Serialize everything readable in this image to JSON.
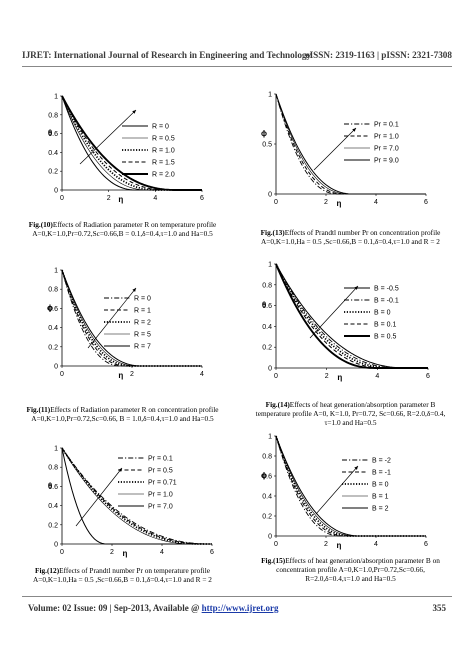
{
  "header": {
    "journal": "IJRET: International Journal of Research in Engineering and Technology",
    "issn": "eISSN: 2319-1163 | pISSN: 2321-7308"
  },
  "footer": {
    "prefix": "Volume: 02 Issue: 09 | Sep-2013, Available @ ",
    "url": "http://www.ijret.org",
    "page": "355"
  },
  "figures": [
    {
      "id": "fig10",
      "caption_label": "Fig.(10)",
      "caption_text": "Effects of Radiation parameter R on temperature profile A=0,K=1.0,Pr=0.72,Sc=0.66,B = 0.1,δ=0.4,τ=1.0 and Ha=0.5",
      "chart_data": {
        "type": "line",
        "xlabel": "η",
        "ylabel": "θ",
        "xlim": [
          0,
          6
        ],
        "ylim": [
          0,
          1
        ],
        "xticks": [
          "0",
          "2",
          "4",
          "6"
        ],
        "yticks": [
          "0",
          "0.2",
          "0.4",
          "0.6",
          "0.8",
          "1"
        ],
        "legend_position": "right",
        "series": [
          {
            "name": "R = 0",
            "style": "solid",
            "decay": 3.2
          },
          {
            "name": "R = 0.5",
            "style": "thin",
            "decay": 3.7
          },
          {
            "name": "R = 1.0",
            "style": "dot",
            "decay": 4.1
          },
          {
            "name": "R = 1.5",
            "style": "dash",
            "decay": 4.5
          },
          {
            "name": "R = 2.0",
            "style": "thick",
            "decay": 4.9
          }
        ]
      }
    },
    {
      "id": "fig13",
      "caption_label": "Fig.(13)",
      "caption_text": "Effects of Prandtl number Pr on concentration profile A=0,K=1.0,Ha = 0.5 ,Sc=0.66,B = 0.1,δ=0.4,τ=1.0 and R = 2",
      "chart_data": {
        "type": "line",
        "xlabel": "η",
        "ylabel": "ϕ",
        "xlim": [
          0,
          6
        ],
        "ylim": [
          0,
          1
        ],
        "xticks": [
          "0",
          "2",
          "4",
          "6"
        ],
        "yticks": [
          "0",
          "0.5",
          "1"
        ],
        "legend_position": "right",
        "series": [
          {
            "name": "Pr = 0.1",
            "style": "dashdot",
            "decay": 2.5
          },
          {
            "name": "Pr = 1.0",
            "style": "dash",
            "decay": 2.7
          },
          {
            "name": "Pr = 7.0",
            "style": "thin",
            "decay": 2.9
          },
          {
            "name": "Pr = 9.0",
            "style": "solid",
            "decay": 3.1
          }
        ]
      }
    },
    {
      "id": "fig11",
      "caption_label": "Fig.(11)",
      "caption_text": "Effects of Radiation parameter R on concentration profile A=0,K=1.0,Pr=0.72,Sc=0.66, B = 1.0,δ=0.4,τ=1.0 and Ha=0.5",
      "chart_data": {
        "type": "line",
        "xlabel": "η",
        "ylabel": "ϕ",
        "xlim": [
          0,
          4
        ],
        "ylim": [
          0,
          1
        ],
        "xticks": [
          "0",
          "2",
          "4"
        ],
        "yticks": [
          "0",
          "0.2",
          "0.4",
          "0.6",
          "0.8",
          "1"
        ],
        "legend_position": "right",
        "series": [
          {
            "name": "R = 0",
            "style": "dashdot",
            "decay": 1.7
          },
          {
            "name": "R = 1",
            "style": "dash",
            "decay": 1.85
          },
          {
            "name": "R = 2",
            "style": "dot",
            "decay": 2.0
          },
          {
            "name": "R = 5",
            "style": "thin",
            "decay": 2.15
          },
          {
            "name": "R = 7",
            "style": "solid",
            "decay": 2.3
          }
        ]
      }
    },
    {
      "id": "fig14",
      "caption_label": "Fig.(14)",
      "caption_text": "Effects of heat generation/absorption parameter B temperature profile A=0, K=1.0, Pr=0.72, Sc=0.66, R=2.0,δ=0.4, τ=1.0 and Ha=0.5",
      "chart_data": {
        "type": "line",
        "xlabel": "η",
        "ylabel": "θ",
        "xlim": [
          0,
          6
        ],
        "ylim": [
          0,
          1
        ],
        "xticks": [
          "0",
          "2",
          "4",
          "6"
        ],
        "yticks": [
          "0",
          "0.2",
          "0.4",
          "0.6",
          "0.8",
          "1"
        ],
        "legend_position": "right",
        "series": [
          {
            "name": "B = -0.5",
            "style": "solid",
            "decay": 5.2
          },
          {
            "name": "B = -0.1",
            "style": "dashdot",
            "decay": 4.9
          },
          {
            "name": "B = 0",
            "style": "dot",
            "decay": 4.6
          },
          {
            "name": "B = 0.1",
            "style": "dash",
            "decay": 4.3
          },
          {
            "name": "B = 0.5",
            "style": "thick",
            "decay": 3.9
          }
        ]
      }
    },
    {
      "id": "fig12",
      "caption_label": "Fig.(12)",
      "caption_text": "Effects of Prandtl number Pr on temperature profile A=0,K=1.0,Ha = 0.5 ,Sc=0.66,B = 0.1,δ=0.4,τ=1.0 and R = 2",
      "chart_data": {
        "type": "line",
        "xlabel": "η",
        "ylabel": "θ",
        "xlim": [
          0,
          6
        ],
        "ylim": [
          0,
          1
        ],
        "xticks": [
          "0",
          "2",
          "4",
          "6"
        ],
        "yticks": [
          "0",
          "0.2",
          "0.4",
          "0.6",
          "0.8",
          "1"
        ],
        "legend_position": "right",
        "series": [
          {
            "name": "Pr = 0.1",
            "style": "dashdot",
            "decay": 6.0
          },
          {
            "name": "Pr = 0.5",
            "style": "dash",
            "decay": 5.8
          },
          {
            "name": "Pr = 0.71",
            "style": "dot",
            "decay": 5.6
          },
          {
            "name": "Pr = 1.0",
            "style": "thin",
            "decay": 5.3
          },
          {
            "name": "Pr = 7.0",
            "style": "solid",
            "decay": 1.8
          }
        ]
      }
    },
    {
      "id": "fig15",
      "caption_label": "Fig.(15)",
      "caption_text": "Effects of heat generation/absorption parameter B on concentration profile A=0,K=1.0,Pr=0.72,Sc=0.66, R=2.0,δ=0.4,τ=1.0 and Ha=0.5",
      "chart_data": {
        "type": "line",
        "xlabel": "η",
        "ylabel": "ϕ",
        "xlim": [
          0,
          6
        ],
        "ylim": [
          0,
          1
        ],
        "xticks": [
          "0",
          "2",
          "4",
          "6"
        ],
        "yticks": [
          "0",
          "0.2",
          "0.4",
          "0.6",
          "0.8",
          "1"
        ],
        "legend_position": "right",
        "series": [
          {
            "name": "B = -2",
            "style": "dashdot",
            "decay": 2.6
          },
          {
            "name": "B = -1",
            "style": "dash",
            "decay": 2.8
          },
          {
            "name": "B = 0",
            "style": "dot",
            "decay": 3.0
          },
          {
            "name": "B = 1",
            "style": "thin",
            "decay": 3.2
          },
          {
            "name": "B = 2",
            "style": "solid",
            "decay": 3.4
          }
        ]
      }
    }
  ]
}
